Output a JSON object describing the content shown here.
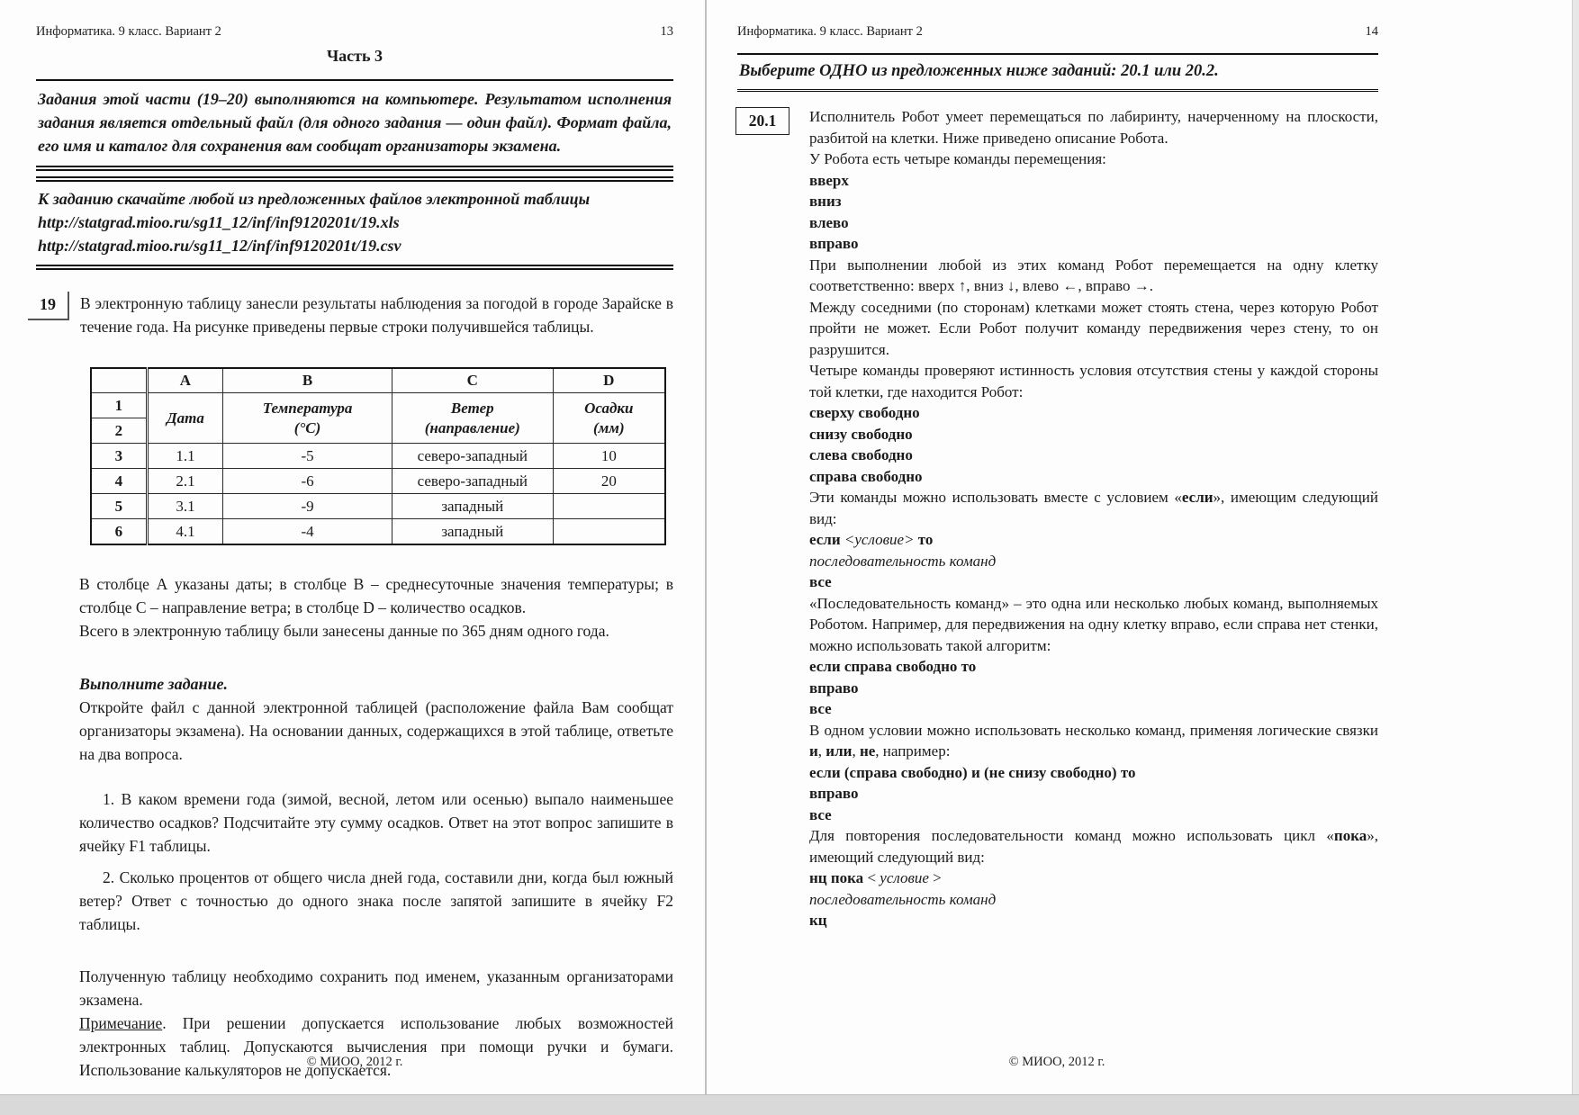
{
  "doc": {
    "header_title": "Информатика. 9 класс. Вариант 2",
    "footer": "© МИОО, 2012 г."
  },
  "left": {
    "page_number": "13",
    "part_title": "Часть 3",
    "intro": "Задания этой части (19–20) выполняются на компьютере. Результатом исполнения задания является отдельный файл (для одного задания — один файл). Формат файла, его имя и каталог для сохранения вам сообщат организаторы экзамена.",
    "download": {
      "line": "К заданию скачайте любой из предложенных файлов электронной таблицы",
      "url_xls": "http://statgrad.mioo.ru/sg11_12/inf/inf9120201t/19.xls",
      "url_csv": "http://statgrad.mioo.ru/sg11_12/inf/inf9120201t/19.csv"
    },
    "task19": {
      "number": "19",
      "intro": "В электронную таблицу занесли результаты наблюдения за погодой в городе Зарайске в течение года. На рисунке приведены первые строки получившейся таблицы.",
      "table": {
        "letters": [
          "A",
          "B",
          "C",
          "D"
        ],
        "row1": "1",
        "row2": "2",
        "fields": {
          "a": [
            "Дата",
            ""
          ],
          "b": [
            "Температура",
            "(°С)"
          ],
          "c": [
            "Ветер",
            "(направление)"
          ],
          "d": [
            "Осадки",
            "(мм)"
          ]
        },
        "rows": [
          {
            "num": "3",
            "a": "1.1",
            "b": "-5",
            "c": "северо-западный",
            "d": "10"
          },
          {
            "num": "4",
            "a": "2.1",
            "b": "-6",
            "c": "северо-западный",
            "d": "20"
          },
          {
            "num": "5",
            "a": "3.1",
            "b": "-9",
            "c": "западный",
            "d": ""
          },
          {
            "num": "6",
            "a": "4.1",
            "b": "-4",
            "c": "западный",
            "d": ""
          }
        ]
      },
      "columns_note": "В столбце А указаны даты; в столбце В – среднесуточные значения температуры; в столбце С – направление ветра; в столбце D – количество осадков.",
      "total_note": "Всего в электронную таблицу были занесены данные по 365 дням одного года.",
      "exercise_heading": "Выполните задание.",
      "open_file": "Откройте файл с данной электронной таблицей (расположение файла Вам сообщат организаторы экзамена). На основании данных, содержащихся в этой таблице, ответьте на два вопроса.",
      "q1": "1. В каком времени года (зимой, весной, летом или осенью) выпало наименьшее количество осадков? Подсчитайте эту сумму осадков. Ответ на этот вопрос запишите в ячейку F1 таблицы.",
      "q2": "2. Сколько процентов от общего числа дней года, составили дни, когда был южный ветер? Ответ с точностью до одного знака после запятой запишите в ячейку F2 таблицы.",
      "save_note": "Полученную таблицу необходимо сохранить под именем, указанным организаторами экзамена.",
      "note": [
        {
          "t": "Примечание",
          "u": true
        },
        {
          "t": ". При решении допускается использование любых возможностей электронных таблиц. Допускаются вычисления при помощи ручки и бумаги. Использование калькуляторов не допускается."
        }
      ]
    }
  },
  "right": {
    "page_number": "14",
    "banner": "Выберите ОДНО из предложенных ниже заданий: 20.1 или 20.2.",
    "task_number": "20.1",
    "blocks": [
      {
        "cls": "p",
        "seg": [
          {
            "t": "Исполнитель Робот умеет перемещаться по лабиринту, начерченному на плоскости, разбитой на клетки. Ниже приведено описание Робота."
          }
        ]
      },
      {
        "cls": "p",
        "seg": [
          {
            "t": "У Робота есть четыре команды перемещения:"
          }
        ]
      },
      {
        "cls": "b",
        "seg": [
          {
            "t": "вверх",
            "b": true
          }
        ]
      },
      {
        "cls": "b",
        "seg": [
          {
            "t": "вниз",
            "b": true
          }
        ]
      },
      {
        "cls": "b",
        "seg": [
          {
            "t": "влево",
            "b": true
          }
        ]
      },
      {
        "cls": "b",
        "seg": [
          {
            "t": "вправо",
            "b": true
          }
        ]
      },
      {
        "cls": "p",
        "seg": [
          {
            "t": "При выполнении любой из этих команд Робот перемещается на одну клетку соответственно: вверх ↑, вниз ↓, влево ←, вправо →."
          }
        ]
      },
      {
        "cls": "p",
        "seg": [
          {
            "t": "Между соседними (по сторонам) клетками может стоять стена, через которую Робот пройти не может. Если Робот получит команду передвижения через стену, то он разрушится."
          }
        ]
      },
      {
        "cls": "p",
        "seg": [
          {
            "t": "Четыре команды проверяют истинность условия отсутствия стены у каждой стороны той клетки, где находится Робот:"
          }
        ]
      },
      {
        "cls": "b",
        "seg": [
          {
            "t": "сверху свободно",
            "b": true
          }
        ]
      },
      {
        "cls": "b",
        "seg": [
          {
            "t": "снизу свободно",
            "b": true
          }
        ]
      },
      {
        "cls": "b",
        "seg": [
          {
            "t": "слева свободно",
            "b": true
          }
        ]
      },
      {
        "cls": "b",
        "seg": [
          {
            "t": "справа свободно",
            "b": true
          }
        ]
      },
      {
        "cls": "p",
        "seg": [
          {
            "t": "Эти команды можно использовать вместе с условием «"
          },
          {
            "t": "если",
            "b": true
          },
          {
            "t": "», имеющим следующий вид:"
          }
        ]
      },
      {
        "cls": "b",
        "seg": [
          {
            "t": "если ",
            "b": true
          },
          {
            "t": "<условие>",
            "i": true
          },
          {
            "t": " то",
            "b": true
          }
        ]
      },
      {
        "cls": "i",
        "seg": [
          {
            "t": "последовательность команд",
            "i": true
          }
        ]
      },
      {
        "cls": "b",
        "seg": [
          {
            "t": "все",
            "b": true
          }
        ]
      },
      {
        "cls": "p",
        "seg": [
          {
            "t": "«Последовательность команд» – это одна или несколько любых команд, выполняемых Роботом. Например, для передвижения на одну клетку вправо, если справа нет стенки, можно использовать такой алгоритм:"
          }
        ]
      },
      {
        "cls": "b",
        "seg": [
          {
            "t": "если справа свободно то",
            "b": true
          }
        ]
      },
      {
        "cls": "b",
        "seg": [
          {
            "t": "вправо",
            "b": true
          }
        ]
      },
      {
        "cls": "b",
        "seg": [
          {
            "t": "все",
            "b": true
          }
        ]
      },
      {
        "cls": "p",
        "seg": [
          {
            "t": "В одном условии можно использовать несколько команд, применяя логические связки "
          },
          {
            "t": "и",
            "b": true
          },
          {
            "t": ", "
          },
          {
            "t": "или",
            "b": true
          },
          {
            "t": ", "
          },
          {
            "t": "не",
            "b": true
          },
          {
            "t": ", например:"
          }
        ]
      },
      {
        "cls": "b",
        "seg": [
          {
            "t": "если (справа свободно) и (не снизу свободно) то",
            "b": true
          }
        ]
      },
      {
        "cls": "b",
        "seg": [
          {
            "t": "вправо",
            "b": true
          }
        ]
      },
      {
        "cls": "b",
        "seg": [
          {
            "t": "все",
            "b": true
          }
        ]
      },
      {
        "cls": "p",
        "seg": [
          {
            "t": "Для повторения последовательности команд можно использовать цикл «"
          },
          {
            "t": "пока",
            "b": true
          },
          {
            "t": "», имеющий следующий вид:"
          }
        ]
      },
      {
        "cls": "b",
        "seg": [
          {
            "t": "нц пока",
            "b": true
          },
          {
            "t": " < "
          },
          {
            "t": "условие",
            "i": true
          },
          {
            "t": " >"
          }
        ]
      },
      {
        "cls": "i",
        "seg": [
          {
            "t": "последовательность команд",
            "i": true
          }
        ]
      },
      {
        "cls": "b",
        "seg": [
          {
            "t": "кц",
            "b": true
          }
        ]
      }
    ]
  }
}
